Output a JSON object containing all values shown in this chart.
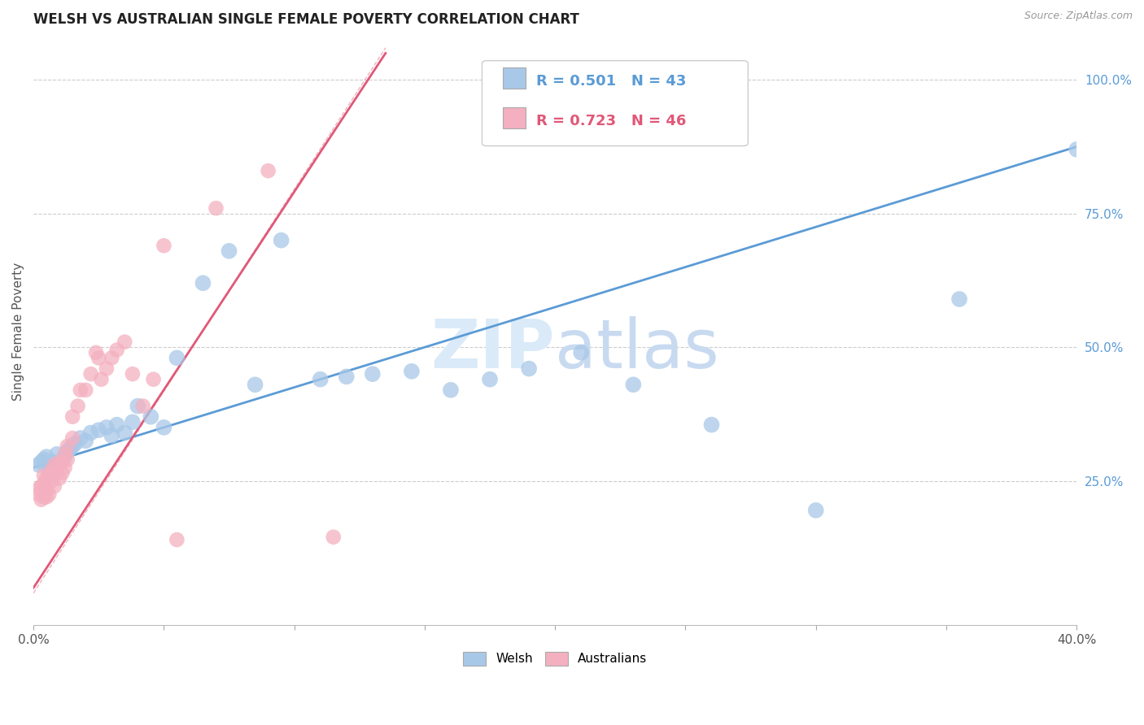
{
  "title": "WELSH VS AUSTRALIAN SINGLE FEMALE POVERTY CORRELATION CHART",
  "source": "Source: ZipAtlas.com",
  "ylabel": "Single Female Poverty",
  "xlim": [
    0.0,
    0.4
  ],
  "ylim": [
    -0.02,
    1.08
  ],
  "x_ticks": [
    0.0,
    0.05,
    0.1,
    0.15,
    0.2,
    0.25,
    0.3,
    0.35,
    0.4
  ],
  "x_tick_labels": [
    "0.0%",
    "",
    "",
    "",
    "",
    "",
    "",
    "",
    "40.0%"
  ],
  "y_ticks_right": [
    0.25,
    0.5,
    0.75,
    1.0
  ],
  "y_tick_labels_right": [
    "25.0%",
    "50.0%",
    "75.0%",
    "100.0%"
  ],
  "welsh_color": "#a8c8e8",
  "welsh_color_dark": "#5b9bd5",
  "australian_color": "#f4b0c0",
  "australian_color_dark": "#e05878",
  "welsh_R": 0.501,
  "welsh_N": 43,
  "australian_R": 0.723,
  "australian_N": 46,
  "background_color": "#ffffff",
  "grid_color": "#cccccc",
  "title_color": "#222222",
  "watermark_color": "#daeaf8",
  "legend_label_1": "Welsh",
  "legend_label_2": "Australians",
  "welsh_scatter_x": [
    0.002,
    0.003,
    0.004,
    0.005,
    0.006,
    0.007,
    0.008,
    0.009,
    0.012,
    0.013,
    0.014,
    0.015,
    0.016,
    0.018,
    0.02,
    0.022,
    0.025,
    0.028,
    0.03,
    0.032,
    0.035,
    0.038,
    0.04,
    0.045,
    0.05,
    0.055,
    0.065,
    0.075,
    0.085,
    0.095,
    0.11,
    0.12,
    0.13,
    0.145,
    0.16,
    0.175,
    0.19,
    0.21,
    0.23,
    0.26,
    0.3,
    0.355,
    0.4
  ],
  "welsh_scatter_y": [
    0.28,
    0.285,
    0.29,
    0.295,
    0.27,
    0.275,
    0.285,
    0.3,
    0.295,
    0.305,
    0.31,
    0.315,
    0.32,
    0.33,
    0.325,
    0.34,
    0.345,
    0.35,
    0.335,
    0.355,
    0.34,
    0.36,
    0.39,
    0.37,
    0.35,
    0.48,
    0.62,
    0.68,
    0.43,
    0.7,
    0.44,
    0.445,
    0.45,
    0.455,
    0.42,
    0.44,
    0.46,
    0.49,
    0.43,
    0.355,
    0.195,
    0.59,
    0.87
  ],
  "australian_scatter_x": [
    0.002,
    0.002,
    0.003,
    0.003,
    0.004,
    0.004,
    0.004,
    0.005,
    0.005,
    0.005,
    0.006,
    0.006,
    0.007,
    0.007,
    0.008,
    0.008,
    0.009,
    0.01,
    0.01,
    0.011,
    0.011,
    0.012,
    0.012,
    0.013,
    0.013,
    0.015,
    0.015,
    0.017,
    0.018,
    0.02,
    0.022,
    0.024,
    0.025,
    0.026,
    0.028,
    0.03,
    0.032,
    0.035,
    0.038,
    0.042,
    0.046,
    0.05,
    0.055,
    0.07,
    0.09,
    0.115
  ],
  "australian_scatter_y": [
    0.225,
    0.235,
    0.215,
    0.24,
    0.22,
    0.245,
    0.26,
    0.22,
    0.235,
    0.255,
    0.225,
    0.26,
    0.25,
    0.27,
    0.24,
    0.28,
    0.265,
    0.255,
    0.285,
    0.265,
    0.285,
    0.275,
    0.3,
    0.29,
    0.315,
    0.33,
    0.37,
    0.39,
    0.42,
    0.42,
    0.45,
    0.49,
    0.48,
    0.44,
    0.46,
    0.48,
    0.495,
    0.51,
    0.45,
    0.39,
    0.44,
    0.69,
    0.14,
    0.76,
    0.83,
    0.145
  ],
  "welsh_line_x": [
    0.0,
    0.4
  ],
  "welsh_line_y": [
    0.275,
    0.875
  ],
  "australian_line_x": [
    0.0,
    0.135
  ],
  "australian_line_y": [
    0.05,
    1.05
  ],
  "ref_line_x": [
    0.0,
    0.135
  ],
  "ref_line_y": [
    0.04,
    1.06
  ]
}
